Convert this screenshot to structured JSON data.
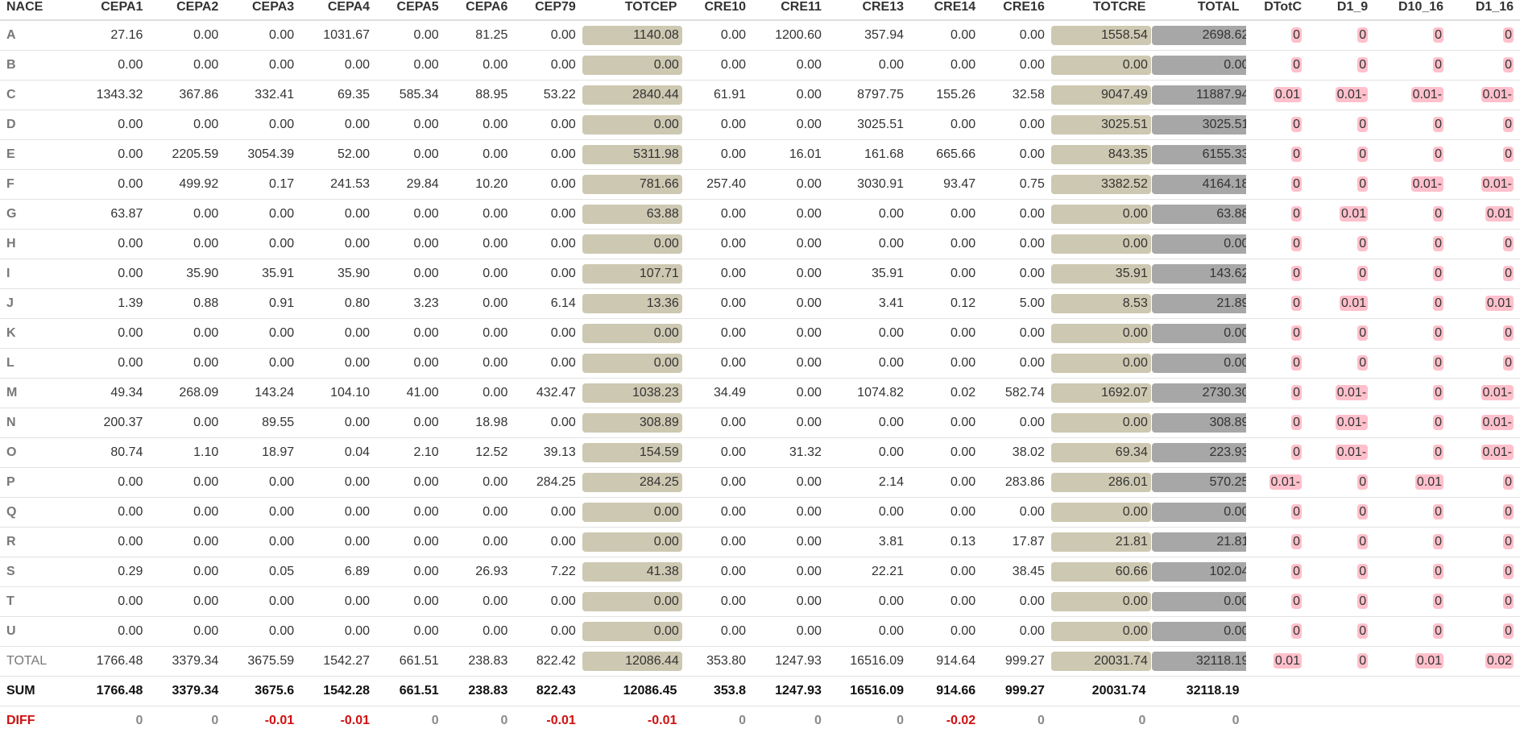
{
  "columns": [
    "NACE",
    "CEPA1",
    "CEPA2",
    "CEPA3",
    "CEPA4",
    "CEPA5",
    "CEPA6",
    "CEP79",
    "TOTCEP",
    "CRE10",
    "CRE11",
    "CRE13",
    "CRE14",
    "CRE16",
    "TOTCRE",
    "TOTAL",
    "DTotC",
    "D1_9",
    "D10_16",
    "D1_16"
  ],
  "rows": [
    {
      "label": "A",
      "values": [
        "27.16",
        "0.00",
        "0.00",
        "1031.67",
        "0.00",
        "81.25",
        "0.00",
        "1140.08",
        "0.00",
        "1200.60",
        "357.94",
        "0.00",
        "0.00",
        "1558.54",
        "2698.62",
        "0",
        "0",
        "0",
        "0"
      ]
    },
    {
      "label": "B",
      "values": [
        "0.00",
        "0.00",
        "0.00",
        "0.00",
        "0.00",
        "0.00",
        "0.00",
        "0.00",
        "0.00",
        "0.00",
        "0.00",
        "0.00",
        "0.00",
        "0.00",
        "0.00",
        "0",
        "0",
        "0",
        "0"
      ]
    },
    {
      "label": "C",
      "values": [
        "1343.32",
        "367.86",
        "332.41",
        "69.35",
        "585.34",
        "88.95",
        "53.22",
        "2840.44",
        "61.91",
        "0.00",
        "8797.75",
        "155.26",
        "32.58",
        "9047.49",
        "11887.94",
        "0.01",
        "0.01-",
        "0.01-",
        "0.01-"
      ]
    },
    {
      "label": "D",
      "values": [
        "0.00",
        "0.00",
        "0.00",
        "0.00",
        "0.00",
        "0.00",
        "0.00",
        "0.00",
        "0.00",
        "0.00",
        "3025.51",
        "0.00",
        "0.00",
        "3025.51",
        "3025.51",
        "0",
        "0",
        "0",
        "0"
      ]
    },
    {
      "label": "E",
      "values": [
        "0.00",
        "2205.59",
        "3054.39",
        "52.00",
        "0.00",
        "0.00",
        "0.00",
        "5311.98",
        "0.00",
        "16.01",
        "161.68",
        "665.66",
        "0.00",
        "843.35",
        "6155.33",
        "0",
        "0",
        "0",
        "0"
      ]
    },
    {
      "label": "F",
      "values": [
        "0.00",
        "499.92",
        "0.17",
        "241.53",
        "29.84",
        "10.20",
        "0.00",
        "781.66",
        "257.40",
        "0.00",
        "3030.91",
        "93.47",
        "0.75",
        "3382.52",
        "4164.18",
        "0",
        "0",
        "0.01-",
        "0.01-"
      ]
    },
    {
      "label": "G",
      "values": [
        "63.87",
        "0.00",
        "0.00",
        "0.00",
        "0.00",
        "0.00",
        "0.00",
        "63.88",
        "0.00",
        "0.00",
        "0.00",
        "0.00",
        "0.00",
        "0.00",
        "63.88",
        "0",
        "0.01",
        "0",
        "0.01"
      ]
    },
    {
      "label": "H",
      "values": [
        "0.00",
        "0.00",
        "0.00",
        "0.00",
        "0.00",
        "0.00",
        "0.00",
        "0.00",
        "0.00",
        "0.00",
        "0.00",
        "0.00",
        "0.00",
        "0.00",
        "0.00",
        "0",
        "0",
        "0",
        "0"
      ]
    },
    {
      "label": "I",
      "values": [
        "0.00",
        "35.90",
        "35.91",
        "35.90",
        "0.00",
        "0.00",
        "0.00",
        "107.71",
        "0.00",
        "0.00",
        "35.91",
        "0.00",
        "0.00",
        "35.91",
        "143.62",
        "0",
        "0",
        "0",
        "0"
      ]
    },
    {
      "label": "J",
      "values": [
        "1.39",
        "0.88",
        "0.91",
        "0.80",
        "3.23",
        "0.00",
        "6.14",
        "13.36",
        "0.00",
        "0.00",
        "3.41",
        "0.12",
        "5.00",
        "8.53",
        "21.89",
        "0",
        "0.01",
        "0",
        "0.01"
      ]
    },
    {
      "label": "K",
      "values": [
        "0.00",
        "0.00",
        "0.00",
        "0.00",
        "0.00",
        "0.00",
        "0.00",
        "0.00",
        "0.00",
        "0.00",
        "0.00",
        "0.00",
        "0.00",
        "0.00",
        "0.00",
        "0",
        "0",
        "0",
        "0"
      ]
    },
    {
      "label": "L",
      "values": [
        "0.00",
        "0.00",
        "0.00",
        "0.00",
        "0.00",
        "0.00",
        "0.00",
        "0.00",
        "0.00",
        "0.00",
        "0.00",
        "0.00",
        "0.00",
        "0.00",
        "0.00",
        "0",
        "0",
        "0",
        "0"
      ]
    },
    {
      "label": "M",
      "values": [
        "49.34",
        "268.09",
        "143.24",
        "104.10",
        "41.00",
        "0.00",
        "432.47",
        "1038.23",
        "34.49",
        "0.00",
        "1074.82",
        "0.02",
        "582.74",
        "1692.07",
        "2730.30",
        "0",
        "0.01-",
        "0",
        "0.01-"
      ]
    },
    {
      "label": "N",
      "values": [
        "200.37",
        "0.00",
        "89.55",
        "0.00",
        "0.00",
        "18.98",
        "0.00",
        "308.89",
        "0.00",
        "0.00",
        "0.00",
        "0.00",
        "0.00",
        "0.00",
        "308.89",
        "0",
        "0.01-",
        "0",
        "0.01-"
      ]
    },
    {
      "label": "O",
      "values": [
        "80.74",
        "1.10",
        "18.97",
        "0.04",
        "2.10",
        "12.52",
        "39.13",
        "154.59",
        "0.00",
        "31.32",
        "0.00",
        "0.00",
        "38.02",
        "69.34",
        "223.93",
        "0",
        "0.01-",
        "0",
        "0.01-"
      ]
    },
    {
      "label": "P",
      "values": [
        "0.00",
        "0.00",
        "0.00",
        "0.00",
        "0.00",
        "0.00",
        "284.25",
        "284.25",
        "0.00",
        "0.00",
        "2.14",
        "0.00",
        "283.86",
        "286.01",
        "570.25",
        "0.01-",
        "0",
        "0.01",
        "0"
      ]
    },
    {
      "label": "Q",
      "values": [
        "0.00",
        "0.00",
        "0.00",
        "0.00",
        "0.00",
        "0.00",
        "0.00",
        "0.00",
        "0.00",
        "0.00",
        "0.00",
        "0.00",
        "0.00",
        "0.00",
        "0.00",
        "0",
        "0",
        "0",
        "0"
      ]
    },
    {
      "label": "R",
      "values": [
        "0.00",
        "0.00",
        "0.00",
        "0.00",
        "0.00",
        "0.00",
        "0.00",
        "0.00",
        "0.00",
        "0.00",
        "3.81",
        "0.13",
        "17.87",
        "21.81",
        "21.81",
        "0",
        "0",
        "0",
        "0"
      ]
    },
    {
      "label": "S",
      "values": [
        "0.29",
        "0.00",
        "0.05",
        "6.89",
        "0.00",
        "26.93",
        "7.22",
        "41.38",
        "0.00",
        "0.00",
        "22.21",
        "0.00",
        "38.45",
        "60.66",
        "102.04",
        "0",
        "0",
        "0",
        "0"
      ]
    },
    {
      "label": "T",
      "values": [
        "0.00",
        "0.00",
        "0.00",
        "0.00",
        "0.00",
        "0.00",
        "0.00",
        "0.00",
        "0.00",
        "0.00",
        "0.00",
        "0.00",
        "0.00",
        "0.00",
        "0.00",
        "0",
        "0",
        "0",
        "0"
      ]
    },
    {
      "label": "U",
      "values": [
        "0.00",
        "0.00",
        "0.00",
        "0.00",
        "0.00",
        "0.00",
        "0.00",
        "0.00",
        "0.00",
        "0.00",
        "0.00",
        "0.00",
        "0.00",
        "0.00",
        "0.00",
        "0",
        "0",
        "0",
        "0"
      ]
    }
  ],
  "total_row": {
    "label": "TOTAL",
    "values": [
      "1766.48",
      "3379.34",
      "3675.59",
      "1542.27",
      "661.51",
      "238.83",
      "822.42",
      "12086.44",
      "353.80",
      "1247.93",
      "16516.09",
      "914.64",
      "999.27",
      "20031.74",
      "32118.19",
      "0.01",
      "0",
      "0.01",
      "0.02"
    ]
  },
  "sum_row": {
    "label": "SUM",
    "values": [
      "1766.48",
      "3379.34",
      "3675.6",
      "1542.28",
      "661.51",
      "238.83",
      "822.43",
      "12086.45",
      "353.8",
      "1247.93",
      "16516.09",
      "914.66",
      "999.27",
      "20031.74",
      "32118.19",
      "",
      "",
      "",
      ""
    ]
  },
  "diff_row": {
    "label": "DIFF",
    "values": [
      "0",
      "0",
      "-0.01",
      "-0.01",
      "0",
      "0",
      "-0.01",
      "-0.01",
      "0",
      "0",
      "0",
      "-0.02",
      "0",
      "0",
      "0",
      "",
      "",
      "",
      ""
    ]
  },
  "colors": {
    "subtotal_pill": "#cdc8b1",
    "total_pill": "#a7a7a7",
    "check_pill": "#ffc0cb",
    "diff_negative": "#d01010",
    "diff_label": "#d01010"
  }
}
